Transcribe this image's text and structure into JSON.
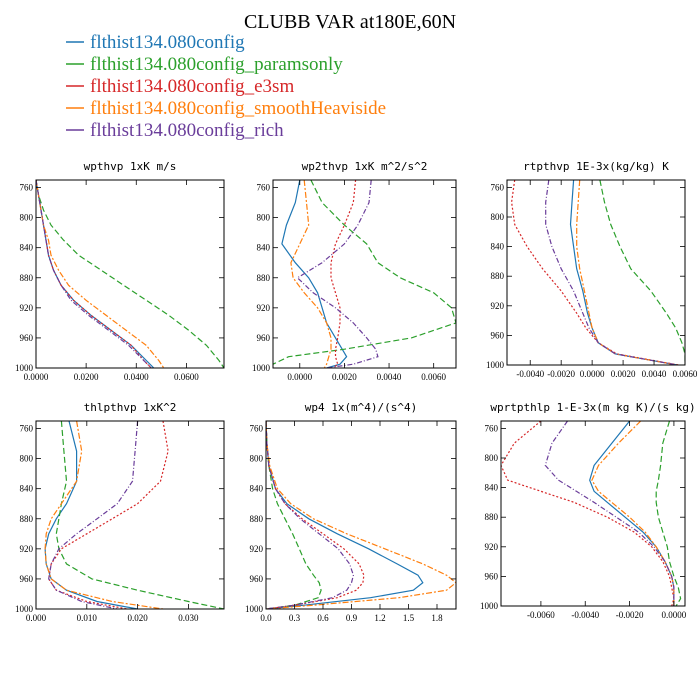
{
  "figure": {
    "title": "CLUBB VAR at180E,60N"
  },
  "legend": [
    {
      "name": "flthist134.080config",
      "color": "#1f77b4"
    },
    {
      "name": "flthist134.080config_paramsonly",
      "color": "#2ca02c"
    },
    {
      "name": "flthist134.080config_e3sm",
      "color": "#d62728"
    },
    {
      "name": "flthist134.080config_smoothHeaviside",
      "color": "#ff7f0e"
    },
    {
      "name": "flthist134.080config_rich",
      "color": "#6a3d9a"
    }
  ],
  "chart_data": [
    {
      "type": "line",
      "title": "wpthvp   1xK m/s",
      "xlim": [
        0,
        0.075
      ],
      "ylim": [
        1000,
        750
      ],
      "xticks": [
        0,
        0.02,
        0.04,
        0.06
      ],
      "xtick_labels": [
        "0.0000",
        "0.0200",
        "0.0400",
        "0.0600"
      ],
      "yticks": [
        760,
        800,
        840,
        880,
        920,
        960,
        1000
      ],
      "y": [
        750,
        770,
        790,
        810,
        830,
        850,
        870,
        890,
        910,
        930,
        950,
        970,
        990,
        1000
      ],
      "series": [
        {
          "name": "flthist134.080config",
          "values": [
            0.0,
            0.001,
            0.002,
            0.003,
            0.004,
            0.005,
            0.007,
            0.01,
            0.015,
            0.022,
            0.03,
            0.038,
            0.044,
            0.047
          ]
        },
        {
          "name": "flthist134.080config_paramsonly",
          "values": [
            0.0,
            0.001,
            0.003,
            0.006,
            0.011,
            0.017,
            0.026,
            0.035,
            0.044,
            0.053,
            0.061,
            0.068,
            0.073,
            0.075
          ]
        },
        {
          "name": "flthist134.080config_e3sm",
          "values": [
            0.0,
            0.001,
            0.002,
            0.003,
            0.004,
            0.005,
            0.007,
            0.01,
            0.015,
            0.022,
            0.03,
            0.038,
            0.043,
            0.046
          ]
        },
        {
          "name": "flthist134.080config_smoothHeaviside",
          "values": [
            0.0,
            0.001,
            0.002,
            0.003,
            0.005,
            0.006,
            0.009,
            0.013,
            0.02,
            0.028,
            0.036,
            0.044,
            0.049,
            0.051
          ]
        },
        {
          "name": "flthist134.080config_rich",
          "values": [
            0.0,
            0.001,
            0.002,
            0.003,
            0.004,
            0.005,
            0.007,
            0.01,
            0.014,
            0.021,
            0.029,
            0.037,
            0.043,
            0.046
          ]
        }
      ]
    },
    {
      "type": "line",
      "title": "wp2thvp   1xK m^2/s^2",
      "xlim": [
        -0.0012,
        0.007
      ],
      "ylim": [
        1000,
        750
      ],
      "xticks": [
        0,
        0.002,
        0.004,
        0.006
      ],
      "xtick_labels": [
        "0.0000",
        "0.0020",
        "0.0040",
        "0.0060"
      ],
      "yticks": [
        760,
        800,
        840,
        880,
        920,
        960,
        1000
      ],
      "y": [
        750,
        780,
        810,
        835,
        860,
        880,
        900,
        920,
        940,
        960,
        975,
        985,
        995,
        1000
      ],
      "series": [
        {
          "name": "flthist134.080config",
          "values": [
            0.0,
            -0.0002,
            -0.0006,
            -0.0008,
            -0.0002,
            0.0004,
            0.0008,
            0.001,
            0.0012,
            0.0016,
            0.0019,
            0.0021,
            0.0018,
            0.0012
          ]
        },
        {
          "name": "flthist134.080config_paramsonly",
          "values": [
            0.0005,
            0.001,
            0.002,
            0.003,
            0.0035,
            0.0045,
            0.006,
            0.0068,
            0.007,
            0.005,
            0.002,
            -0.0005,
            -0.0012,
            -0.0015
          ]
        },
        {
          "name": "flthist134.080config_e3sm",
          "values": [
            0.0025,
            0.0024,
            0.002,
            0.0016,
            0.0014,
            0.0014,
            0.0016,
            0.0018,
            0.0018,
            0.0017,
            0.0016,
            0.0016,
            0.0017,
            0.0015
          ]
        },
        {
          "name": "flthist134.080config_smoothHeaviside",
          "values": [
            0.0002,
            0.0003,
            0.0004,
            0.0,
            -0.0004,
            -0.0003,
            0.0002,
            0.0008,
            0.0012,
            0.0014,
            0.0014,
            0.0013,
            0.0012,
            0.0011
          ]
        },
        {
          "name": "flthist134.080config_rich",
          "values": [
            0.0032,
            0.0031,
            0.0026,
            0.002,
            0.001,
            -0.0001,
            0.0006,
            0.0016,
            0.0024,
            0.003,
            0.0034,
            0.0035,
            0.0024,
            0.0012
          ]
        }
      ]
    },
    {
      "type": "line",
      "title": "rtpthvp   1E-3x(kg/kg) K",
      "xlim": [
        -0.0055,
        0.006
      ],
      "ylim": [
        1000,
        750
      ],
      "xticks": [
        -0.004,
        -0.002,
        0,
        0.002,
        0.004,
        0.006
      ],
      "xtick_labels": [
        "-0.0040",
        "-0.0020",
        "0.0000",
        "0.0020",
        "0.0040",
        "0.0060"
      ],
      "yticks": [
        760,
        800,
        840,
        880,
        920,
        960,
        1000
      ],
      "y": [
        750,
        780,
        810,
        840,
        870,
        900,
        930,
        950,
        970,
        985,
        1000
      ],
      "series": [
        {
          "name": "flthist134.080config",
          "values": [
            -0.0012,
            -0.0013,
            -0.0014,
            -0.0012,
            -0.001,
            -0.0006,
            -0.0003,
            0.0,
            0.0004,
            0.0015,
            0.0055
          ]
        },
        {
          "name": "flthist134.080config_paramsonly",
          "values": [
            0.0005,
            0.0008,
            0.0012,
            0.0018,
            0.0025,
            0.0038,
            0.0048,
            0.0054,
            0.0058,
            0.006,
            0.006
          ]
        },
        {
          "name": "flthist134.080config_e3sm",
          "values": [
            -0.005,
            -0.0052,
            -0.005,
            -0.0042,
            -0.0032,
            -0.002,
            -0.001,
            -0.0004,
            0.0004,
            0.0016,
            0.0056
          ]
        },
        {
          "name": "flthist134.080config_smoothHeaviside",
          "values": [
            -0.0008,
            -0.0009,
            -0.001,
            -0.001,
            -0.0008,
            -0.0005,
            -0.0002,
            0.0,
            0.0004,
            0.0015,
            0.0055
          ]
        },
        {
          "name": "flthist134.080config_rich",
          "values": [
            -0.0028,
            -0.003,
            -0.003,
            -0.0026,
            -0.002,
            -0.0012,
            -0.0006,
            -0.0002,
            0.0004,
            0.0015,
            0.0055
          ]
        }
      ]
    },
    {
      "type": "line",
      "title": "thlpthvp   1xK^2",
      "xlim": [
        0,
        0.037
      ],
      "ylim": [
        1000,
        750
      ],
      "xticks": [
        0,
        0.01,
        0.02,
        0.03
      ],
      "xtick_labels": [
        "0.000",
        "0.010",
        "0.020",
        "0.030"
      ],
      "yticks": [
        760,
        800,
        840,
        880,
        920,
        960,
        1000
      ],
      "y": [
        750,
        790,
        830,
        860,
        880,
        900,
        920,
        940,
        960,
        975,
        990,
        1000
      ],
      "series": [
        {
          "name": "flthist134.080config",
          "values": [
            0.0065,
            0.008,
            0.008,
            0.006,
            0.004,
            0.0025,
            0.0018,
            0.002,
            0.003,
            0.006,
            0.012,
            0.02
          ]
        },
        {
          "name": "flthist134.080config_paramsonly",
          "values": [
            0.005,
            0.0055,
            0.006,
            0.005,
            0.0045,
            0.004,
            0.0045,
            0.006,
            0.011,
            0.02,
            0.03,
            0.037
          ]
        },
        {
          "name": "flthist134.080config_e3sm",
          "values": [
            0.025,
            0.026,
            0.0245,
            0.02,
            0.015,
            0.01,
            0.005,
            0.003,
            0.0025,
            0.004,
            0.01,
            0.018
          ]
        },
        {
          "name": "flthist134.080config_smoothHeaviside",
          "values": [
            0.008,
            0.009,
            0.008,
            0.005,
            0.003,
            0.002,
            0.0018,
            0.002,
            0.003,
            0.006,
            0.015,
            0.025
          ]
        },
        {
          "name": "flthist134.080config_rich",
          "values": [
            0.02,
            0.0195,
            0.019,
            0.016,
            0.012,
            0.008,
            0.0045,
            0.003,
            0.0025,
            0.004,
            0.009,
            0.016
          ]
        }
      ]
    },
    {
      "type": "line",
      "title": "wp4   1x(m^4)/(s^4)",
      "xlim": [
        0,
        2.0
      ],
      "ylim": [
        1000,
        750
      ],
      "xticks": [
        0,
        0.3,
        0.6,
        0.9,
        1.2,
        1.5,
        1.8
      ],
      "xtick_labels": [
        "0.0",
        "0.3",
        "0.6",
        "0.9",
        "1.2",
        "1.5",
        "1.8"
      ],
      "yticks": [
        760,
        800,
        840,
        880,
        920,
        960,
        1000
      ],
      "y": [
        750,
        780,
        810,
        840,
        860,
        880,
        900,
        920,
        940,
        955,
        965,
        975,
        985,
        995,
        1000
      ],
      "series": [
        {
          "name": "flthist134.080config",
          "values": [
            0.0,
            0.01,
            0.03,
            0.1,
            0.22,
            0.45,
            0.75,
            1.08,
            1.38,
            1.6,
            1.65,
            1.55,
            1.1,
            0.4,
            0.0
          ]
        },
        {
          "name": "flthist134.080config_paramsonly",
          "values": [
            0.0,
            0.01,
            0.03,
            0.07,
            0.12,
            0.2,
            0.28,
            0.35,
            0.42,
            0.5,
            0.56,
            0.58,
            0.55,
            0.3,
            0.0
          ]
        },
        {
          "name": "flthist134.080config_e3sm",
          "values": [
            0.0,
            0.01,
            0.03,
            0.1,
            0.2,
            0.38,
            0.6,
            0.82,
            0.98,
            1.03,
            1.02,
            0.95,
            0.75,
            0.3,
            0.0
          ]
        },
        {
          "name": "flthist134.080config_smoothHeaviside",
          "values": [
            0.0,
            0.01,
            0.04,
            0.12,
            0.26,
            0.5,
            0.85,
            1.25,
            1.65,
            1.9,
            2.0,
            1.9,
            1.4,
            0.5,
            0.0
          ]
        },
        {
          "name": "flthist134.080config_rich",
          "values": [
            0.0,
            0.01,
            0.03,
            0.1,
            0.2,
            0.36,
            0.56,
            0.76,
            0.88,
            0.92,
            0.9,
            0.85,
            0.7,
            0.3,
            0.0
          ]
        }
      ]
    },
    {
      "type": "line",
      "title": "wprtpthlp   1-E-3x(m kg K)/(s kg)",
      "xlim": [
        -0.0078,
        0.0005
      ],
      "ylim": [
        1000,
        750
      ],
      "xticks": [
        -0.006,
        -0.004,
        -0.002,
        0
      ],
      "xtick_labels": [
        "-0.0060",
        "-0.0040",
        "-0.0020",
        "0.0000"
      ],
      "yticks": [
        760,
        800,
        840,
        880,
        920,
        960,
        1000
      ],
      "y": [
        750,
        780,
        810,
        830,
        845,
        860,
        880,
        900,
        920,
        940,
        960,
        975,
        990,
        1000
      ],
      "series": [
        {
          "name": "flthist134.080config",
          "values": [
            -0.002,
            -0.0028,
            -0.0036,
            -0.0038,
            -0.0036,
            -0.003,
            -0.0022,
            -0.0014,
            -0.0008,
            -0.0004,
            -0.0001,
            0.0,
            0.0,
            0.0
          ]
        },
        {
          "name": "flthist134.080config_paramsonly",
          "values": [
            -0.0002,
            -0.0005,
            -0.0006,
            -0.0007,
            -0.0008,
            -0.0008,
            -0.0007,
            -0.0005,
            -0.0003,
            -0.0002,
            0.0,
            0.0002,
            0.0003,
            0.0001
          ]
        },
        {
          "name": "flthist134.080config_e3sm",
          "values": [
            -0.006,
            -0.0072,
            -0.0078,
            -0.0075,
            -0.006,
            -0.0045,
            -0.003,
            -0.0018,
            -0.001,
            -0.0005,
            -0.0002,
            -0.0001,
            0.0,
            -0.0001
          ]
        },
        {
          "name": "flthist134.080config_smoothHeaviside",
          "values": [
            -0.0015,
            -0.0025,
            -0.0034,
            -0.0037,
            -0.0034,
            -0.0028,
            -0.002,
            -0.0013,
            -0.0008,
            -0.0004,
            -0.0001,
            0.0,
            0.0,
            0.0
          ]
        },
        {
          "name": "flthist134.080config_rich",
          "values": [
            -0.0048,
            -0.0055,
            -0.0058,
            -0.0052,
            -0.0044,
            -0.0036,
            -0.0026,
            -0.0016,
            -0.0009,
            -0.0004,
            -0.0001,
            0.0,
            0.0,
            0.0
          ]
        }
      ]
    }
  ]
}
